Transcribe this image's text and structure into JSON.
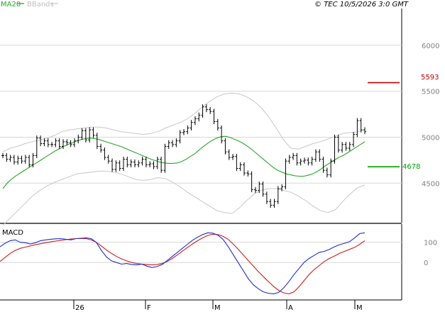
{
  "header": {
    "legend_ma20": "MA20",
    "legend_bbands": "BBands",
    "copyright": "© TEC 10/5/2026 3:0 GMT"
  },
  "colors": {
    "price": "#000000",
    "ma20": "#2aa52a",
    "bbands": "#c8c8c8",
    "macd_line": "#1f2fd0",
    "macd_signal": "#cc1f1f",
    "grid": "#d8d8d8",
    "resistance": "#c00000",
    "support": "#00a000",
    "axis_text": "#808080"
  },
  "chart_data": [
    {
      "type": "candlestick",
      "title": "",
      "subtitle": "",
      "xlabel": "",
      "ylabel": "",
      "x_ticks": [
        "26",
        "F",
        "M",
        "A",
        "M"
      ],
      "y_ticks": [
        4500,
        5000,
        5500,
        6000
      ],
      "ylim": [
        4070,
        6400
      ],
      "grid": true,
      "legend": [
        "MA20",
        "BBands"
      ],
      "legend_placement": "top-left",
      "levels": [
        {
          "name": "resistance",
          "value": 5593,
          "label": "5593"
        },
        {
          "name": "support",
          "value": 4678,
          "label": "4678"
        }
      ],
      "series": [
        {
          "name": "price",
          "values": [
            4800,
            4760,
            4780,
            4730,
            4770,
            4740,
            4780,
            4700,
            4800,
            4990,
            4930,
            4960,
            4920,
            4920,
            4960,
            4900,
            4950,
            4940,
            4920,
            4960,
            5000,
            5070,
            4970,
            5080,
            5020,
            4900,
            4860,
            4780,
            4740,
            4650,
            4720,
            4660,
            4760,
            4700,
            4730,
            4700,
            4720,
            4760,
            4700,
            4710,
            4680,
            4760,
            4640,
            4900,
            4940,
            4920,
            4960,
            5050,
            5060,
            5100,
            5160,
            5200,
            5240,
            5330,
            5300,
            5280,
            5170,
            5100,
            4960,
            4840,
            4780,
            4790,
            4660,
            4700,
            4610,
            4600,
            4430,
            4420,
            4490,
            4380,
            4300,
            4260,
            4300,
            4440,
            4460,
            4740,
            4780,
            4800,
            4720,
            4740,
            4750,
            4720,
            4760,
            4840,
            4760,
            4640,
            4590,
            4740,
            5000,
            4860,
            4920,
            4880,
            4920,
            5030,
            5180,
            5080,
            5060
          ]
        },
        {
          "name": "MA20",
          "values": [
            4440,
            4500,
            4545,
            4580,
            4610,
            4640,
            4670,
            4700,
            4730,
            4760,
            4790,
            4820,
            4850,
            4875,
            4900,
            4920,
            4940,
            4960,
            4975,
            4985,
            4990,
            4985,
            4975,
            4960,
            4945,
            4930,
            4915,
            4900,
            4880,
            4860,
            4840,
            4820,
            4800,
            4780,
            4760,
            4745,
            4730,
            4720,
            4715,
            4715,
            4720,
            4735,
            4760,
            4790,
            4820,
            4860,
            4900,
            4935,
            4965,
            4990,
            5005,
            5010,
            5000,
            4980,
            4960,
            4935,
            4905,
            4870,
            4830,
            4790,
            4750,
            4710,
            4670,
            4640,
            4620,
            4600,
            4590,
            4580,
            4575,
            4575,
            4585,
            4600,
            4625,
            4655,
            4690,
            4720,
            4750,
            4780,
            4800,
            4830,
            4860,
            4890,
            4920,
            4950
          ]
        },
        {
          "name": "BBands upper",
          "values": [
            4840,
            4880,
            4900,
            4930,
            4950,
            4970,
            4990,
            5020,
            5060,
            5080,
            5090,
            5100,
            5110,
            5110,
            5100,
            5080,
            5060,
            5050,
            5040,
            5030,
            5040,
            5060,
            5100,
            5130,
            5160,
            5200,
            5260,
            5330,
            5390,
            5440,
            5470,
            5480,
            5470,
            5440,
            5390,
            5320,
            5220,
            5100,
            4970,
            4880,
            4870,
            4900,
            4930,
            4950,
            4980,
            5010,
            5040,
            5050,
            5060,
            5080
          ]
        },
        {
          "name": "BBands lower",
          "values": [
            4040,
            4120,
            4200,
            4280,
            4360,
            4420,
            4470,
            4510,
            4540,
            4570,
            4600,
            4610,
            4620,
            4630,
            4630,
            4620,
            4600,
            4570,
            4540,
            4530,
            4540,
            4560,
            4550,
            4510,
            4460,
            4400,
            4350,
            4300,
            4250,
            4200,
            4180,
            4170,
            4230,
            4310,
            4380,
            4420,
            4440,
            4440,
            4420,
            4400,
            4360,
            4310,
            4250,
            4200,
            4180,
            4210,
            4300,
            4380,
            4450,
            4480
          ]
        }
      ]
    },
    {
      "type": "line",
      "title": "MACD",
      "xlabel": "",
      "ylabel": "",
      "y_ticks": [
        0,
        100
      ],
      "ylim": [
        -185,
        190
      ],
      "grid": true,
      "series": [
        {
          "name": "MACD line",
          "values": [
            78,
            95,
            108,
            112,
            100,
            98,
            92,
            98,
            108,
            112,
            115,
            117,
            118,
            115,
            112,
            118,
            120,
            122,
            118,
            100,
            60,
            28,
            8,
            0,
            -8,
            -5,
            -10,
            -12,
            -8,
            -18,
            -25,
            -20,
            -10,
            10,
            30,
            50,
            70,
            90,
            110,
            125,
            138,
            147,
            145,
            135,
            115,
            80,
            40,
            0,
            -40,
            -80,
            -110,
            -130,
            -145,
            -152,
            -155,
            -148,
            -125,
            -95,
            -60,
            -30,
            0,
            20,
            35,
            50,
            55,
            65,
            78,
            88,
            95,
            103,
            122,
            143,
            147
          ]
        },
        {
          "name": "Signal line",
          "values": [
            5,
            25,
            45,
            60,
            70,
            76,
            82,
            88,
            93,
            98,
            102,
            106,
            110,
            113,
            116,
            118,
            119,
            118,
            112,
            100,
            82,
            62,
            45,
            30,
            18,
            8,
            0,
            -5,
            -8,
            -10,
            -12,
            -10,
            -5,
            5,
            20,
            38,
            56,
            74,
            92,
            108,
            122,
            134,
            140,
            138,
            130,
            115,
            92,
            66,
            38,
            10,
            -18,
            -45,
            -70,
            -95,
            -118,
            -138,
            -150,
            -155,
            -145,
            -120,
            -90,
            -60,
            -35,
            -15,
            5,
            20,
            32,
            45,
            55,
            65,
            75,
            90,
            108
          ]
        }
      ]
    }
  ]
}
